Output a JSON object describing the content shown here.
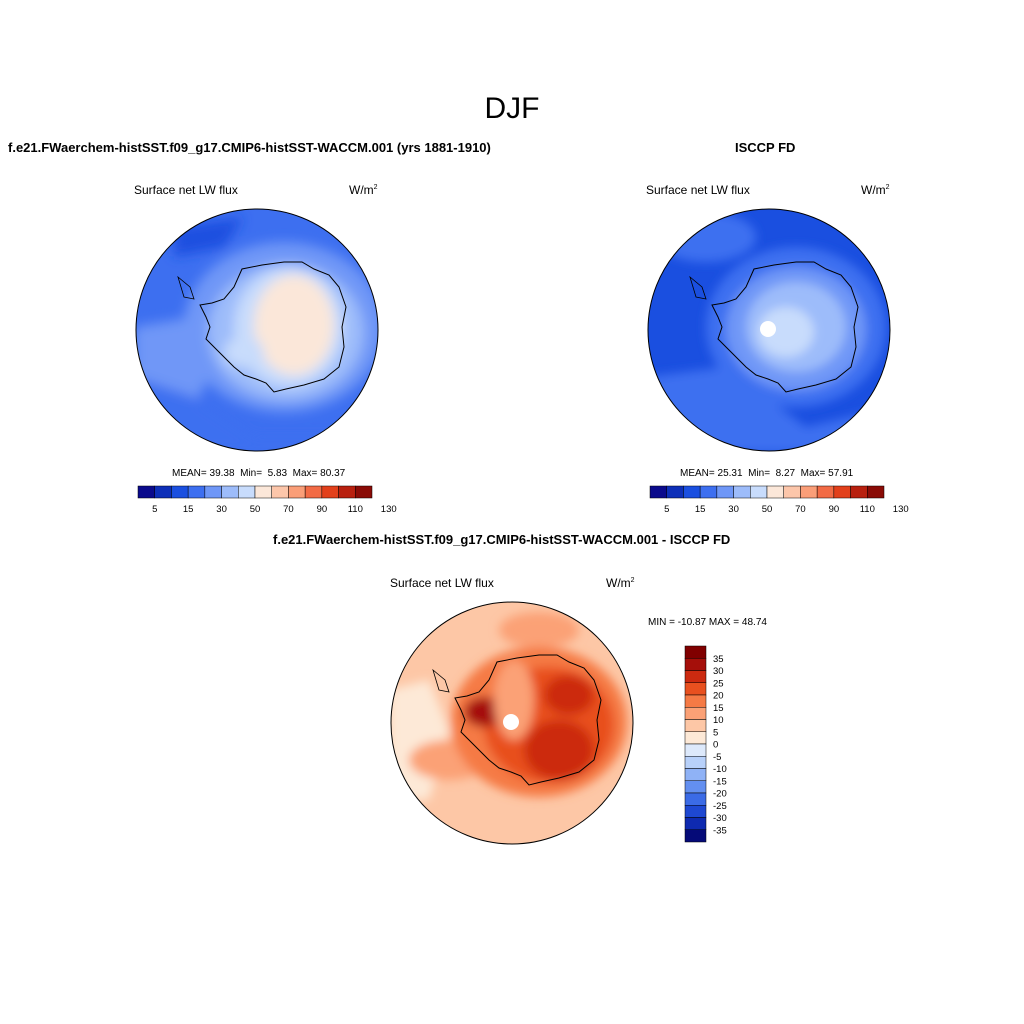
{
  "figure": {
    "title": "DJF"
  },
  "panels": [
    {
      "id": "model",
      "title": "f.e21.FWaerchem-histSST.f09_g17.CMIP6-histSST-WACCM.001 (yrs 1881-1910)",
      "left_label": "Surface net LW flux",
      "units": "W/m",
      "units_sup": "2",
      "stats": {
        "mean_label": "MEAN=",
        "mean": "39.38",
        "min_label": "Min=",
        "min": "5.83",
        "max_label": "Max=",
        "max": "80.37"
      },
      "colorbar_ticks": [
        "5",
        "15",
        "30",
        "50",
        "70",
        "90",
        "110",
        "130"
      ]
    },
    {
      "id": "obs",
      "title": "ISCCP FD",
      "left_label": "Surface net LW flux",
      "units": "W/m",
      "units_sup": "2",
      "stats": {
        "mean_label": "MEAN=",
        "mean": "25.31",
        "min_label": "Min=",
        "min": "8.27",
        "max_label": "Max=",
        "max": "57.91"
      },
      "colorbar_ticks": [
        "5",
        "15",
        "30",
        "50",
        "70",
        "90",
        "110",
        "130"
      ]
    },
    {
      "id": "diff",
      "title": "f.e21.FWaerchem-histSST.f09_g17.CMIP6-histSST-WACCM.001 - ISCCP FD",
      "left_label": "Surface net LW flux",
      "units": "W/m",
      "units_sup": "2",
      "minmax": "MIN = -10.87 MAX =  48.74",
      "colorbar_ticks": [
        "35",
        "30",
        "25",
        "20",
        "15",
        "10",
        "5",
        "0",
        "-5",
        "-10",
        "-15",
        "-20",
        "-25",
        "-30",
        "-35"
      ]
    }
  ],
  "colors": {
    "abs_scale": [
      "#0a0a8c",
      "#0d2fb8",
      "#1a4fe0",
      "#3d6ff0",
      "#6f97f7",
      "#9dbcfa",
      "#c8dcfc",
      "#fbe7d9",
      "#fcc6aa",
      "#fa9e78",
      "#f26b45",
      "#e2401b",
      "#b8200f",
      "#8a0b06"
    ],
    "diff_scale": [
      "#800000",
      "#a50f0a",
      "#cc2a10",
      "#e8501f",
      "#f57a45",
      "#fba176",
      "#fdc7a6",
      "#fde9d7",
      "#dde9fb",
      "#b8d1fa",
      "#8fb2f6",
      "#638ff0",
      "#3b6be6",
      "#1e48d2",
      "#0e2ab0",
      "#050a78"
    ]
  }
}
